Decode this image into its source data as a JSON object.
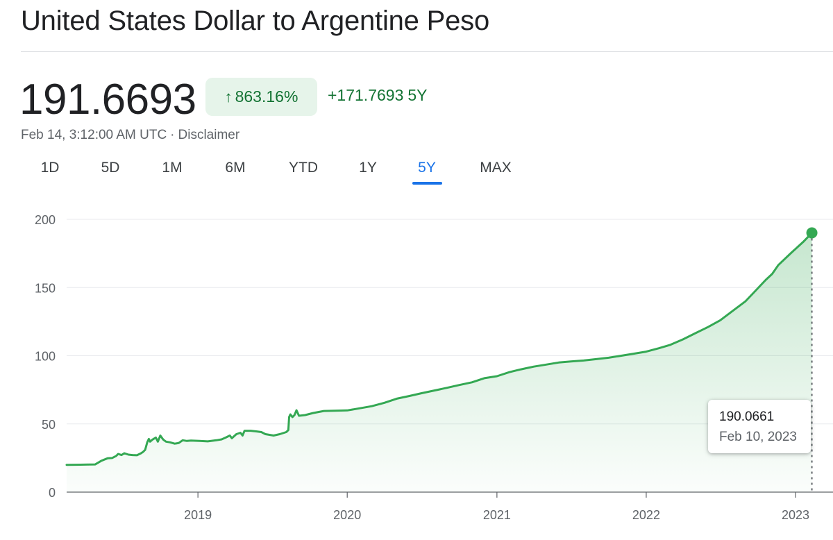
{
  "header": {
    "title": "United States Dollar to Argentine Peso"
  },
  "quote": {
    "price": "191.6693",
    "change_pct": "863.16%",
    "change_abs": "+171.7693",
    "change_period": "5Y",
    "timestamp": "Feb 14, 3:12:00 AM UTC",
    "separator": "·",
    "disclaimer": "Disclaimer",
    "up_arrow_icon": "arrow-up-icon"
  },
  "tabs": [
    {
      "label": "1D",
      "active": false
    },
    {
      "label": "5D",
      "active": false
    },
    {
      "label": "1M",
      "active": false
    },
    {
      "label": "6M",
      "active": false
    },
    {
      "label": "YTD",
      "active": false
    },
    {
      "label": "1Y",
      "active": false
    },
    {
      "label": "5Y",
      "active": true
    },
    {
      "label": "MAX",
      "active": false
    }
  ],
  "tooltip": {
    "value": "190.0661",
    "date": "Feb 10, 2023"
  },
  "colors": {
    "line": "#34a853",
    "fill_top": "#34a853",
    "positive_text": "#137333",
    "chip_bg": "#e6f4ea",
    "active_tab": "#1a73e8",
    "grid": "#e8eaed",
    "axis_text": "#5f6368"
  },
  "chart_data": {
    "type": "area",
    "xlabel": "",
    "ylabel": "",
    "ylim": [
      0,
      200
    ],
    "xlim": [
      "2018-02-14",
      "2023-02-14"
    ],
    "y_ticks": [
      "0",
      "50",
      "100",
      "150",
      "200"
    ],
    "x_ticks": [
      {
        "label": "2019",
        "date": "2019-01-01"
      },
      {
        "label": "2020",
        "date": "2020-01-01"
      },
      {
        "label": "2021",
        "date": "2021-01-01"
      },
      {
        "label": "2022",
        "date": "2022-01-01"
      },
      {
        "label": "2023",
        "date": "2023-01-01"
      }
    ],
    "grid": true,
    "series": [
      {
        "points": [
          [
            "2018-02-14",
            20.0
          ],
          [
            "2018-03-20",
            20.1
          ],
          [
            "2018-04-10",
            20.2
          ],
          [
            "2018-04-25",
            20.3
          ],
          [
            "2018-05-10",
            23.0
          ],
          [
            "2018-05-25",
            24.8
          ],
          [
            "2018-06-05",
            25.0
          ],
          [
            "2018-06-15",
            26.5
          ],
          [
            "2018-06-20",
            28.0
          ],
          [
            "2018-06-28",
            27.2
          ],
          [
            "2018-07-05",
            28.5
          ],
          [
            "2018-07-15",
            27.5
          ],
          [
            "2018-07-25",
            27.2
          ],
          [
            "2018-08-05",
            27.0
          ],
          [
            "2018-08-15",
            28.5
          ],
          [
            "2018-08-20",
            29.5
          ],
          [
            "2018-08-25",
            31.0
          ],
          [
            "2018-08-30",
            36.5
          ],
          [
            "2018-09-03",
            39.0
          ],
          [
            "2018-09-06",
            37.0
          ],
          [
            "2018-09-12",
            38.5
          ],
          [
            "2018-09-20",
            40.0
          ],
          [
            "2018-09-25",
            37.0
          ],
          [
            "2018-10-01",
            41.5
          ],
          [
            "2018-10-08",
            38.5
          ],
          [
            "2018-10-15",
            37.0
          ],
          [
            "2018-10-25",
            36.5
          ],
          [
            "2018-11-05",
            35.5
          ],
          [
            "2018-11-15",
            36.0
          ],
          [
            "2018-11-25",
            38.0
          ],
          [
            "2018-12-05",
            37.5
          ],
          [
            "2018-12-15",
            37.8
          ],
          [
            "2019-01-05",
            37.5
          ],
          [
            "2019-01-25",
            37.2
          ],
          [
            "2019-02-15",
            38.0
          ],
          [
            "2019-02-28",
            38.7
          ],
          [
            "2019-03-10",
            40.0
          ],
          [
            "2019-03-20",
            41.5
          ],
          [
            "2019-03-25",
            39.5
          ],
          [
            "2019-04-05",
            42.5
          ],
          [
            "2019-04-15",
            43.5
          ],
          [
            "2019-04-20",
            41.5
          ],
          [
            "2019-04-25",
            45.0
          ],
          [
            "2019-05-10",
            45.0
          ],
          [
            "2019-05-25",
            44.5
          ],
          [
            "2019-06-05",
            44.0
          ],
          [
            "2019-06-15",
            42.5
          ],
          [
            "2019-06-25",
            42.0
          ],
          [
            "2019-07-05",
            41.5
          ],
          [
            "2019-07-20",
            42.5
          ],
          [
            "2019-08-05",
            44.0
          ],
          [
            "2019-08-10",
            45.5
          ],
          [
            "2019-08-12",
            55.0
          ],
          [
            "2019-08-15",
            57.0
          ],
          [
            "2019-08-20",
            55.0
          ],
          [
            "2019-08-25",
            56.5
          ],
          [
            "2019-08-30",
            60.0
          ],
          [
            "2019-09-05",
            56.0
          ],
          [
            "2019-09-20",
            56.5
          ],
          [
            "2019-10-10",
            58.0
          ],
          [
            "2019-11-05",
            59.5
          ],
          [
            "2019-12-01",
            59.7
          ],
          [
            "2020-01-01",
            59.9
          ],
          [
            "2020-02-01",
            61.5
          ],
          [
            "2020-03-01",
            63.0
          ],
          [
            "2020-04-01",
            65.5
          ],
          [
            "2020-05-01",
            68.5
          ],
          [
            "2020-06-01",
            70.5
          ],
          [
            "2020-07-01",
            72.5
          ],
          [
            "2020-08-01",
            74.5
          ],
          [
            "2020-09-01",
            76.5
          ],
          [
            "2020-10-01",
            78.5
          ],
          [
            "2020-11-01",
            80.5
          ],
          [
            "2020-12-01",
            83.5
          ],
          [
            "2021-01-01",
            85.0
          ],
          [
            "2021-02-01",
            88.0
          ],
          [
            "2021-03-01",
            90.0
          ],
          [
            "2021-04-01",
            92.0
          ],
          [
            "2021-05-01",
            93.5
          ],
          [
            "2021-06-01",
            95.0
          ],
          [
            "2021-07-01",
            95.8
          ],
          [
            "2021-08-01",
            96.5
          ],
          [
            "2021-09-01",
            97.5
          ],
          [
            "2021-10-01",
            98.5
          ],
          [
            "2021-11-01",
            100.0
          ],
          [
            "2021-12-01",
            101.5
          ],
          [
            "2022-01-01",
            103.0
          ],
          [
            "2022-02-01",
            105.5
          ],
          [
            "2022-03-01",
            108.0
          ],
          [
            "2022-04-01",
            112.0
          ],
          [
            "2022-05-01",
            116.5
          ],
          [
            "2022-06-01",
            121.0
          ],
          [
            "2022-07-01",
            126.0
          ],
          [
            "2022-08-01",
            133.0
          ],
          [
            "2022-09-01",
            140.0
          ],
          [
            "2022-09-20",
            146.0
          ],
          [
            "2022-10-20",
            155.5
          ],
          [
            "2022-11-05",
            160.0
          ],
          [
            "2022-11-20",
            166.5
          ],
          [
            "2022-12-20",
            175.0
          ],
          [
            "2023-01-20",
            183.5
          ],
          [
            "2023-02-10",
            190.07
          ]
        ]
      }
    ],
    "highlight": {
      "date": "2023-02-10",
      "value": 190.0661
    }
  }
}
